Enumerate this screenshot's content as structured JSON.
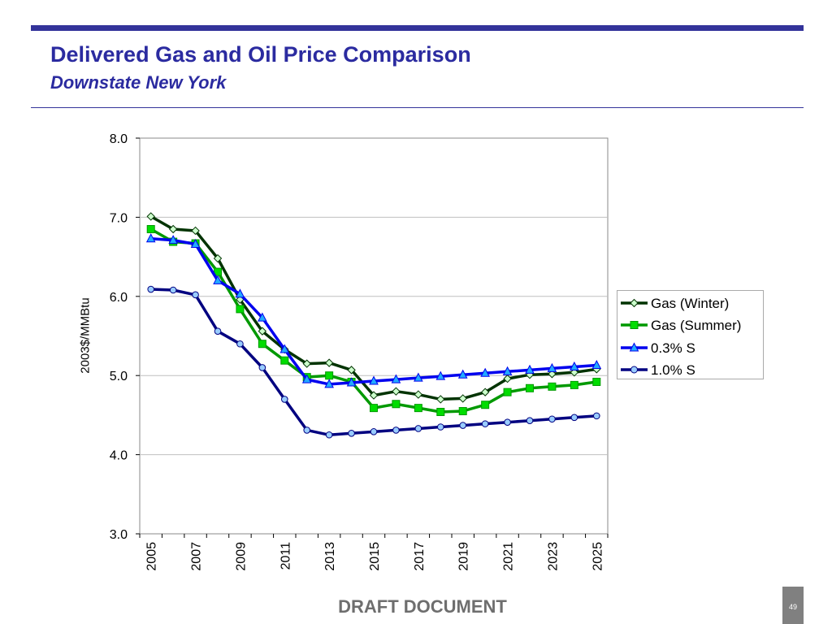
{
  "header": {
    "title": "Delivered Gas and Oil Price Comparison",
    "subtitle": "Downstate New York"
  },
  "footer": {
    "draft_label": "DRAFT DOCUMENT",
    "page_number": "49"
  },
  "colors": {
    "brand": "#33339a",
    "gas_winter": "#003300",
    "gas_summer": "#009900",
    "sulfur_03": "#0000ee",
    "sulfur_10": "#000080"
  },
  "chart_data": {
    "type": "line",
    "title": "",
    "xlabel": "",
    "ylabel": "2003$/MMBtu",
    "ylim": [
      3.0,
      8.0
    ],
    "yticks": [
      "8.0",
      "7.0",
      "6.0",
      "5.0",
      "4.0",
      "3.0"
    ],
    "xticks": [
      "2005",
      "2007",
      "2009",
      "2011",
      "2013",
      "2015",
      "2017",
      "2019",
      "2021",
      "2023",
      "2025"
    ],
    "grid": true,
    "legend_position": "right",
    "x": [
      2005,
      2006,
      2007,
      2008,
      2009,
      2010,
      2011,
      2012,
      2013,
      2014,
      2015,
      2016,
      2017,
      2018,
      2019,
      2020,
      2021,
      2022,
      2023,
      2024,
      2025
    ],
    "series": [
      {
        "name": "Gas (Winter)",
        "color": "#003300",
        "marker": "diamond",
        "marker_fill": "#ccffcc",
        "values": [
          7.01,
          6.85,
          6.83,
          6.48,
          5.96,
          5.56,
          5.33,
          5.15,
          5.16,
          5.07,
          4.75,
          4.8,
          4.76,
          4.7,
          4.71,
          4.79,
          4.96,
          5.01,
          5.02,
          5.04,
          5.08
        ]
      },
      {
        "name": "Gas (Summer)",
        "color": "#009900",
        "marker": "square",
        "marker_fill": "#00dd00",
        "values": [
          6.85,
          6.69,
          6.67,
          6.31,
          5.84,
          5.4,
          5.19,
          4.98,
          5.0,
          4.92,
          4.59,
          4.64,
          4.59,
          4.54,
          4.55,
          4.63,
          4.79,
          4.84,
          4.86,
          4.88,
          4.92
        ]
      },
      {
        "name": "0.3% S",
        "color": "#0000ee",
        "marker": "triangle",
        "marker_fill": "#22aaff",
        "values": [
          6.73,
          6.71,
          6.66,
          6.2,
          6.03,
          5.73,
          5.33,
          4.95,
          4.89,
          4.91,
          4.93,
          4.95,
          4.97,
          4.99,
          5.01,
          5.03,
          5.05,
          5.07,
          5.09,
          5.11,
          5.13
        ]
      },
      {
        "name": "1.0% S",
        "color": "#000080",
        "marker": "circle",
        "marker_fill": "#99ccff",
        "values": [
          6.09,
          6.08,
          6.02,
          5.56,
          5.4,
          5.1,
          4.7,
          4.31,
          4.25,
          4.27,
          4.29,
          4.31,
          4.33,
          4.35,
          4.37,
          4.39,
          4.41,
          4.43,
          4.45,
          4.47,
          4.49
        ]
      }
    ]
  }
}
